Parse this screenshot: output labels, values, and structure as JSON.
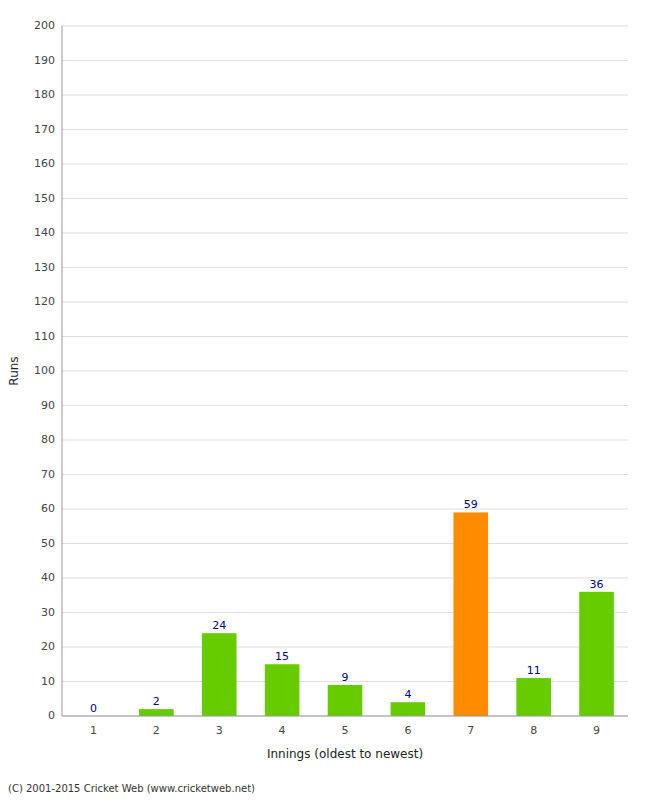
{
  "chart_data": {
    "type": "bar",
    "categories": [
      "1",
      "2",
      "3",
      "4",
      "5",
      "6",
      "7",
      "8",
      "9"
    ],
    "values": [
      0,
      2,
      24,
      15,
      9,
      4,
      59,
      11,
      36
    ],
    "colors": [
      "#66cc00",
      "#66cc00",
      "#66cc00",
      "#66cc00",
      "#66cc00",
      "#66cc00",
      "#ff8c00",
      "#66cc00",
      "#66cc00"
    ],
    "ylabel": "Runs",
    "xlabel": "Innings (oldest to newest)",
    "ylim": [
      0,
      200
    ],
    "yticks": [
      0,
      10,
      20,
      30,
      40,
      50,
      60,
      70,
      80,
      90,
      100,
      110,
      120,
      130,
      140,
      150,
      160,
      170,
      180,
      190,
      200
    ],
    "grid": true,
    "data_labels": true,
    "annotations": [
      "(C) 2001-2015 Cricket Web (www.cricketweb.net)"
    ]
  }
}
